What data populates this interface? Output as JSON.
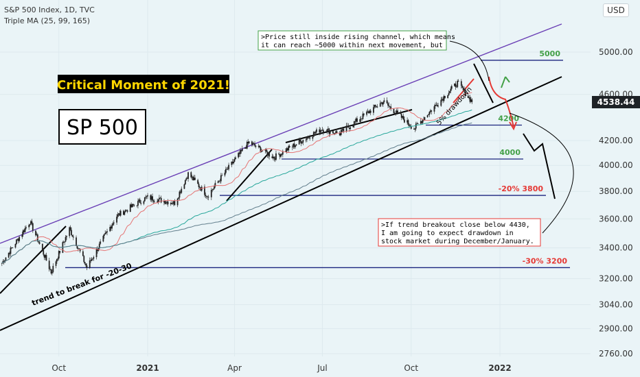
{
  "header": {
    "title": "S&P 500 Index, 1D, TVC",
    "indicator": "Triple MA (25, 99, 165)"
  },
  "currency_button": "USD",
  "last_price": "4538.44",
  "chart_data": {
    "type": "candlestick",
    "symbol": "S&P 500 Index",
    "interval": "1D",
    "x_tick_labels": [
      "Oct",
      "2021",
      "Apr",
      "Jul",
      "Oct",
      "2022"
    ],
    "y_tick_labels": [
      "5000.00",
      "4600.00",
      "4200.00",
      "4000.00",
      "3800.00",
      "3600.00",
      "3400.00",
      "3200.00",
      "3040.00",
      "2900.00",
      "2760.00"
    ],
    "y_scale": "log",
    "approx_close_path": [
      {
        "date": "2020-08",
        "close": 3280
      },
      {
        "date": "2020-09-01",
        "close": 3580
      },
      {
        "date": "2020-09-23",
        "close": 3240
      },
      {
        "date": "2020-10-12",
        "close": 3530
      },
      {
        "date": "2020-10-30",
        "close": 3270
      },
      {
        "date": "2020-11-30",
        "close": 3620
      },
      {
        "date": "2020-12-31",
        "close": 3756
      },
      {
        "date": "2021-01-29",
        "close": 3714
      },
      {
        "date": "2021-02-12",
        "close": 3934
      },
      {
        "date": "2021-03-04",
        "close": 3768
      },
      {
        "date": "2021-04-16",
        "close": 4185
      },
      {
        "date": "2021-05-12",
        "close": 4063
      },
      {
        "date": "2021-06-30",
        "close": 4297
      },
      {
        "date": "2021-07-19",
        "close": 4258
      },
      {
        "date": "2021-09-02",
        "close": 4537
      },
      {
        "date": "2021-10-04",
        "close": 4300
      },
      {
        "date": "2021-11-18",
        "close": 4705
      },
      {
        "date": "2021-11-30",
        "close": 4567
      },
      {
        "date": "2021-12-03",
        "close": 4538
      }
    ],
    "levels": [
      {
        "label": "5000",
        "value": 4920,
        "color": "#43a047"
      },
      {
        "label": "4200",
        "value": 4330,
        "color": "#43a047"
      },
      {
        "label": "4000",
        "value": 4050,
        "color": "#43a047"
      },
      {
        "label": "-20% 3800",
        "value": 3770,
        "color": "#e53935"
      },
      {
        "label": "-30% 3200",
        "value": 3270,
        "color": "#e53935"
      }
    ],
    "moving_averages": [
      {
        "period": 25,
        "color": "#e57373"
      },
      {
        "period": 99,
        "color": "#26a69a"
      },
      {
        "period": 165,
        "color": "#607d8b"
      }
    ]
  },
  "annotations": {
    "headline": "Critical Moment of 2021!",
    "ticker_box": "SP 500",
    "note_top": [
      ">Price still inside rising channel, which means",
      "it can reach ~5000 within next movement, but"
    ],
    "note_bottom": [
      ">If trend breakout close below 4430,",
      "I am going to expect drawdown in",
      "stock market during December/January."
    ],
    "trend_label": "trend to break for -20-30",
    "drawdown_label": "5% drawdown"
  }
}
